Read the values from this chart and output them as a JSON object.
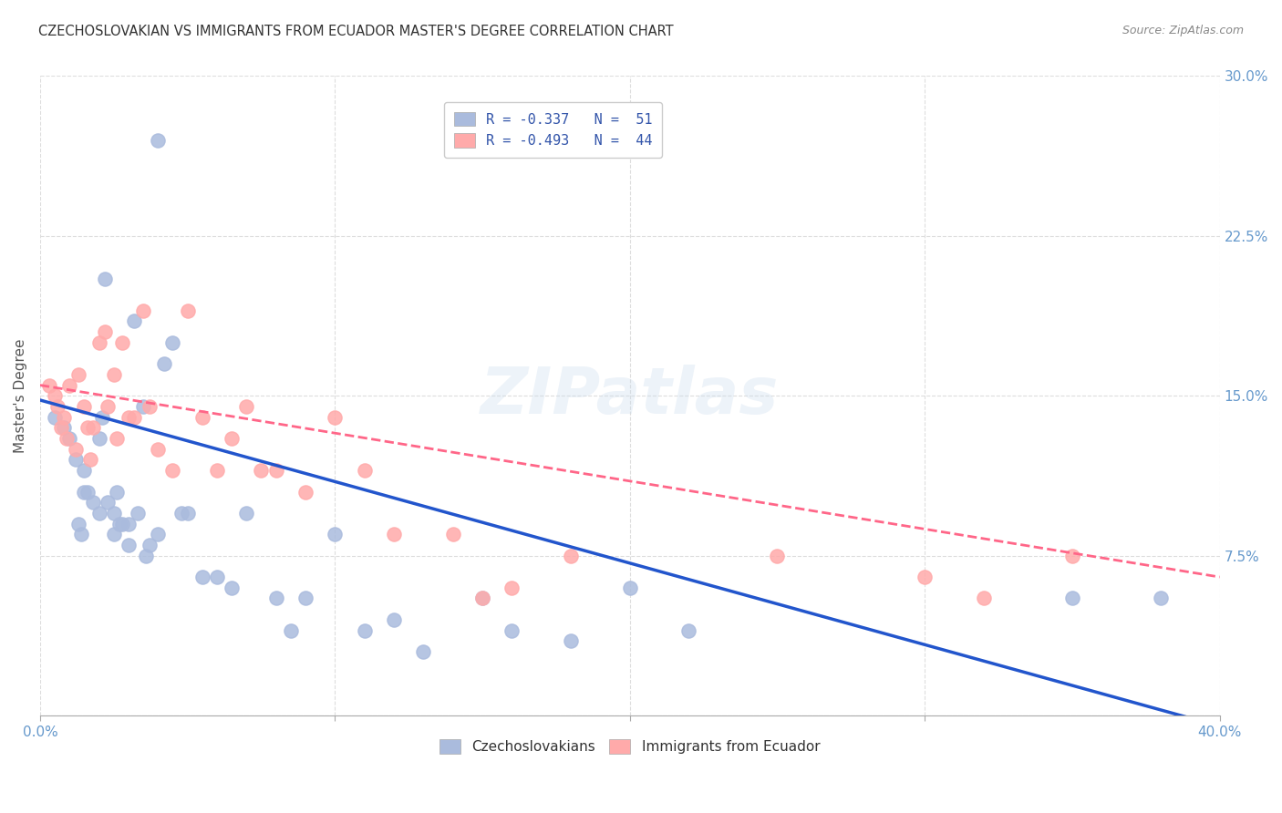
{
  "title": "CZECHOSLOVAKIAN VS IMMIGRANTS FROM ECUADOR MASTER'S DEGREE CORRELATION CHART",
  "source": "Source: ZipAtlas.com",
  "ylabel": "Master's Degree",
  "x_ticks": [
    0.0,
    0.1,
    0.2,
    0.3,
    0.4
  ],
  "x_tick_labels": [
    "0.0%",
    "",
    "",
    "",
    "40.0%"
  ],
  "y_ticks": [
    0.0,
    0.075,
    0.15,
    0.225,
    0.3
  ],
  "y_tick_labels": [
    "",
    "7.5%",
    "15.0%",
    "22.5%",
    "30.0%"
  ],
  "xlim": [
    0.0,
    0.4
  ],
  "ylim": [
    0.0,
    0.3
  ],
  "background_color": "#ffffff",
  "grid_color": "#dddddd",
  "title_color": "#333333",
  "axis_label_color": "#6699cc",
  "legend_label1": "R = -0.337   N =  51",
  "legend_label2": "R = -0.493   N =  44",
  "legend_color": "#3355aa",
  "blue_color": "#aabbdd",
  "pink_color": "#ffaaaa",
  "line_blue": "#2255cc",
  "line_pink": "#ff6688",
  "blue_scatter_x": [
    0.005,
    0.008,
    0.01,
    0.012,
    0.013,
    0.014,
    0.015,
    0.015,
    0.016,
    0.018,
    0.02,
    0.02,
    0.021,
    0.022,
    0.023,
    0.025,
    0.025,
    0.026,
    0.027,
    0.028,
    0.03,
    0.03,
    0.032,
    0.033,
    0.035,
    0.036,
    0.037,
    0.04,
    0.04,
    0.042,
    0.045,
    0.048,
    0.05,
    0.055,
    0.06,
    0.065,
    0.07,
    0.08,
    0.085,
    0.09,
    0.1,
    0.11,
    0.12,
    0.13,
    0.15,
    0.16,
    0.18,
    0.2,
    0.22,
    0.35,
    0.38
  ],
  "blue_scatter_y": [
    0.14,
    0.135,
    0.13,
    0.12,
    0.09,
    0.085,
    0.115,
    0.105,
    0.105,
    0.1,
    0.13,
    0.095,
    0.14,
    0.205,
    0.1,
    0.095,
    0.085,
    0.105,
    0.09,
    0.09,
    0.09,
    0.08,
    0.185,
    0.095,
    0.145,
    0.075,
    0.08,
    0.085,
    0.27,
    0.165,
    0.175,
    0.095,
    0.095,
    0.065,
    0.065,
    0.06,
    0.095,
    0.055,
    0.04,
    0.055,
    0.085,
    0.04,
    0.045,
    0.03,
    0.055,
    0.04,
    0.035,
    0.06,
    0.04,
    0.055,
    0.055
  ],
  "pink_scatter_x": [
    0.003,
    0.005,
    0.006,
    0.007,
    0.008,
    0.009,
    0.01,
    0.012,
    0.013,
    0.015,
    0.016,
    0.017,
    0.018,
    0.02,
    0.022,
    0.023,
    0.025,
    0.026,
    0.028,
    0.03,
    0.032,
    0.035,
    0.037,
    0.04,
    0.045,
    0.05,
    0.055,
    0.06,
    0.065,
    0.07,
    0.075,
    0.08,
    0.09,
    0.1,
    0.11,
    0.12,
    0.14,
    0.15,
    0.16,
    0.18,
    0.25,
    0.3,
    0.32,
    0.35
  ],
  "pink_scatter_y": [
    0.155,
    0.15,
    0.145,
    0.135,
    0.14,
    0.13,
    0.155,
    0.125,
    0.16,
    0.145,
    0.135,
    0.12,
    0.135,
    0.175,
    0.18,
    0.145,
    0.16,
    0.13,
    0.175,
    0.14,
    0.14,
    0.19,
    0.145,
    0.125,
    0.115,
    0.19,
    0.14,
    0.115,
    0.13,
    0.145,
    0.115,
    0.115,
    0.105,
    0.14,
    0.115,
    0.085,
    0.085,
    0.055,
    0.06,
    0.075,
    0.075,
    0.065,
    0.055,
    0.075
  ],
  "blue_line_x": [
    0.0,
    0.4
  ],
  "blue_line_y": [
    0.148,
    -0.005
  ],
  "pink_line_x": [
    0.0,
    0.4
  ],
  "pink_line_y": [
    0.155,
    0.065
  ],
  "watermark": "ZIPatlas",
  "bottom_label1": "Czechoslovakians",
  "bottom_label2": "Immigrants from Ecuador"
}
